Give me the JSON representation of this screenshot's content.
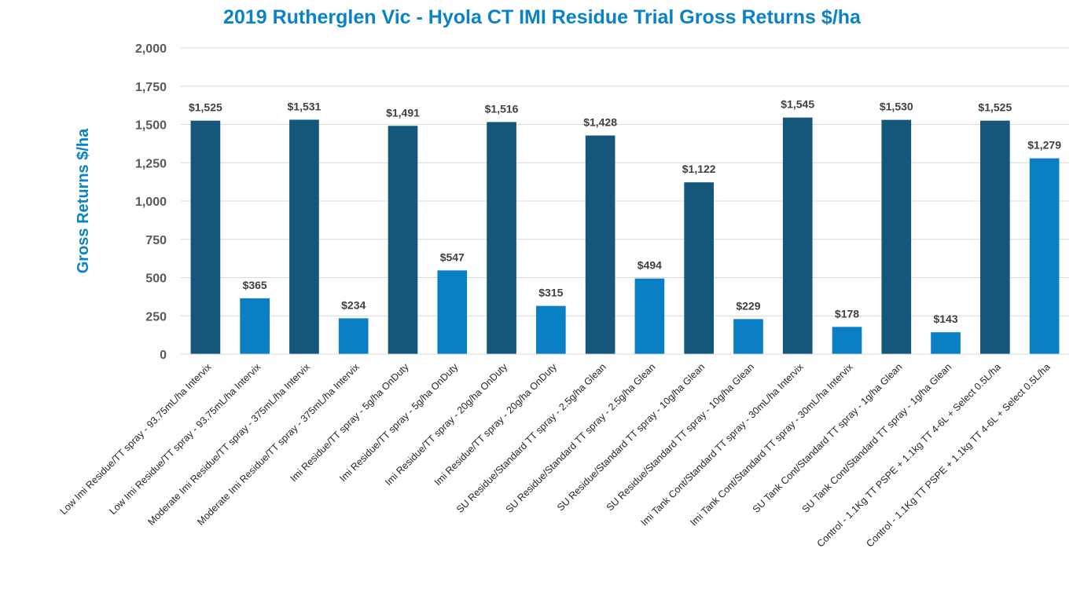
{
  "chart_data": {
    "type": "bar",
    "title": "2019 Rutherglen Vic - Hyola CT IMI Residue Trial Gross Returns $/ha",
    "ylabel": "Gross Returns $/ha",
    "xlabel": "",
    "ylim": [
      0,
      2000
    ],
    "yticks": [
      0,
      250,
      500,
      750,
      1000,
      1250,
      1500,
      1750,
      2000
    ],
    "ytick_labels": [
      "0",
      "250",
      "500",
      "750",
      "1,000",
      "1,250",
      "1,500",
      "1,750",
      "2,000"
    ],
    "grid": true,
    "legend": "none",
    "categories": [
      "Low Imi Residue/TT spray - 93.75mL/ha Intervix",
      "Low Imi Residue/TT spray - 93.75mL/ha Intervix",
      "Moderate Imi Residue/TT spray - 375mL/ha Intervix",
      "Moderate Imi Residue/TT spray - 375mL/ha Intervix",
      "Imi Residue/TT spray - 5g/ha OnDuty",
      "Imi Residue/TT spray - 5g/ha OnDuty",
      "Imi Residue/TT spray - 20g/ha OnDuty",
      "Imi Residue/TT spray - 20g/ha OnDuty",
      "SU Residue/Standard TT spray - 2.5g/ha Glean",
      "SU Residue/Standard TT spray - 2.5g/ha Glean",
      "SU Residue/Standard TT spray - 10g/ha Glean",
      "SU Residue/Standard TT spray - 10g/ha Glean",
      "Imi Tank Cont/Standard TT spray - 30mL/ha Intervix",
      "Imi Tank Cont/Standard TT spray - 30mL/ha Intervix",
      "SU Tank Cont/Standard TT spray - 1g/ha Glean",
      "SU Tank Cont/Standard TT spray - 1g/ha Glean",
      "Control - 1.1Kg TT PSPE + 1.1kg TT 4-6L + Select 0.5L/ha",
      "Control - 1.1Kg TT PSPE + 1.1kg TT 4-6L + Select 0.5L/ha"
    ],
    "values": [
      1525,
      365,
      1531,
      234,
      1491,
      547,
      1516,
      315,
      1428,
      494,
      1122,
      229,
      1545,
      178,
      1530,
      143,
      1525,
      1279
    ],
    "data_labels": [
      "$1,525",
      "$365",
      "$1,531",
      "$234",
      "$1,491",
      "$547",
      "$1,516",
      "$315",
      "$1,428",
      "$494",
      "$1,122",
      "$229",
      "$1,545",
      "$178",
      "$1,530",
      "$143",
      "$1,525",
      "$1,279"
    ],
    "colors": [
      "#15577a",
      "#0a7fc4",
      "#15577a",
      "#0a7fc4",
      "#15577a",
      "#0a7fc4",
      "#15577a",
      "#0a7fc4",
      "#15577a",
      "#0a7fc4",
      "#15577a",
      "#0a7fc4",
      "#15577a",
      "#0a7fc4",
      "#15577a",
      "#0a7fc4",
      "#15577a",
      "#0a7fc4"
    ],
    "colors_meta": {
      "dark_bar": "#15577a",
      "light_bar": "#0a7fc4",
      "title_color": "#0a83c6",
      "grid_color": "#d9d9d9"
    }
  }
}
